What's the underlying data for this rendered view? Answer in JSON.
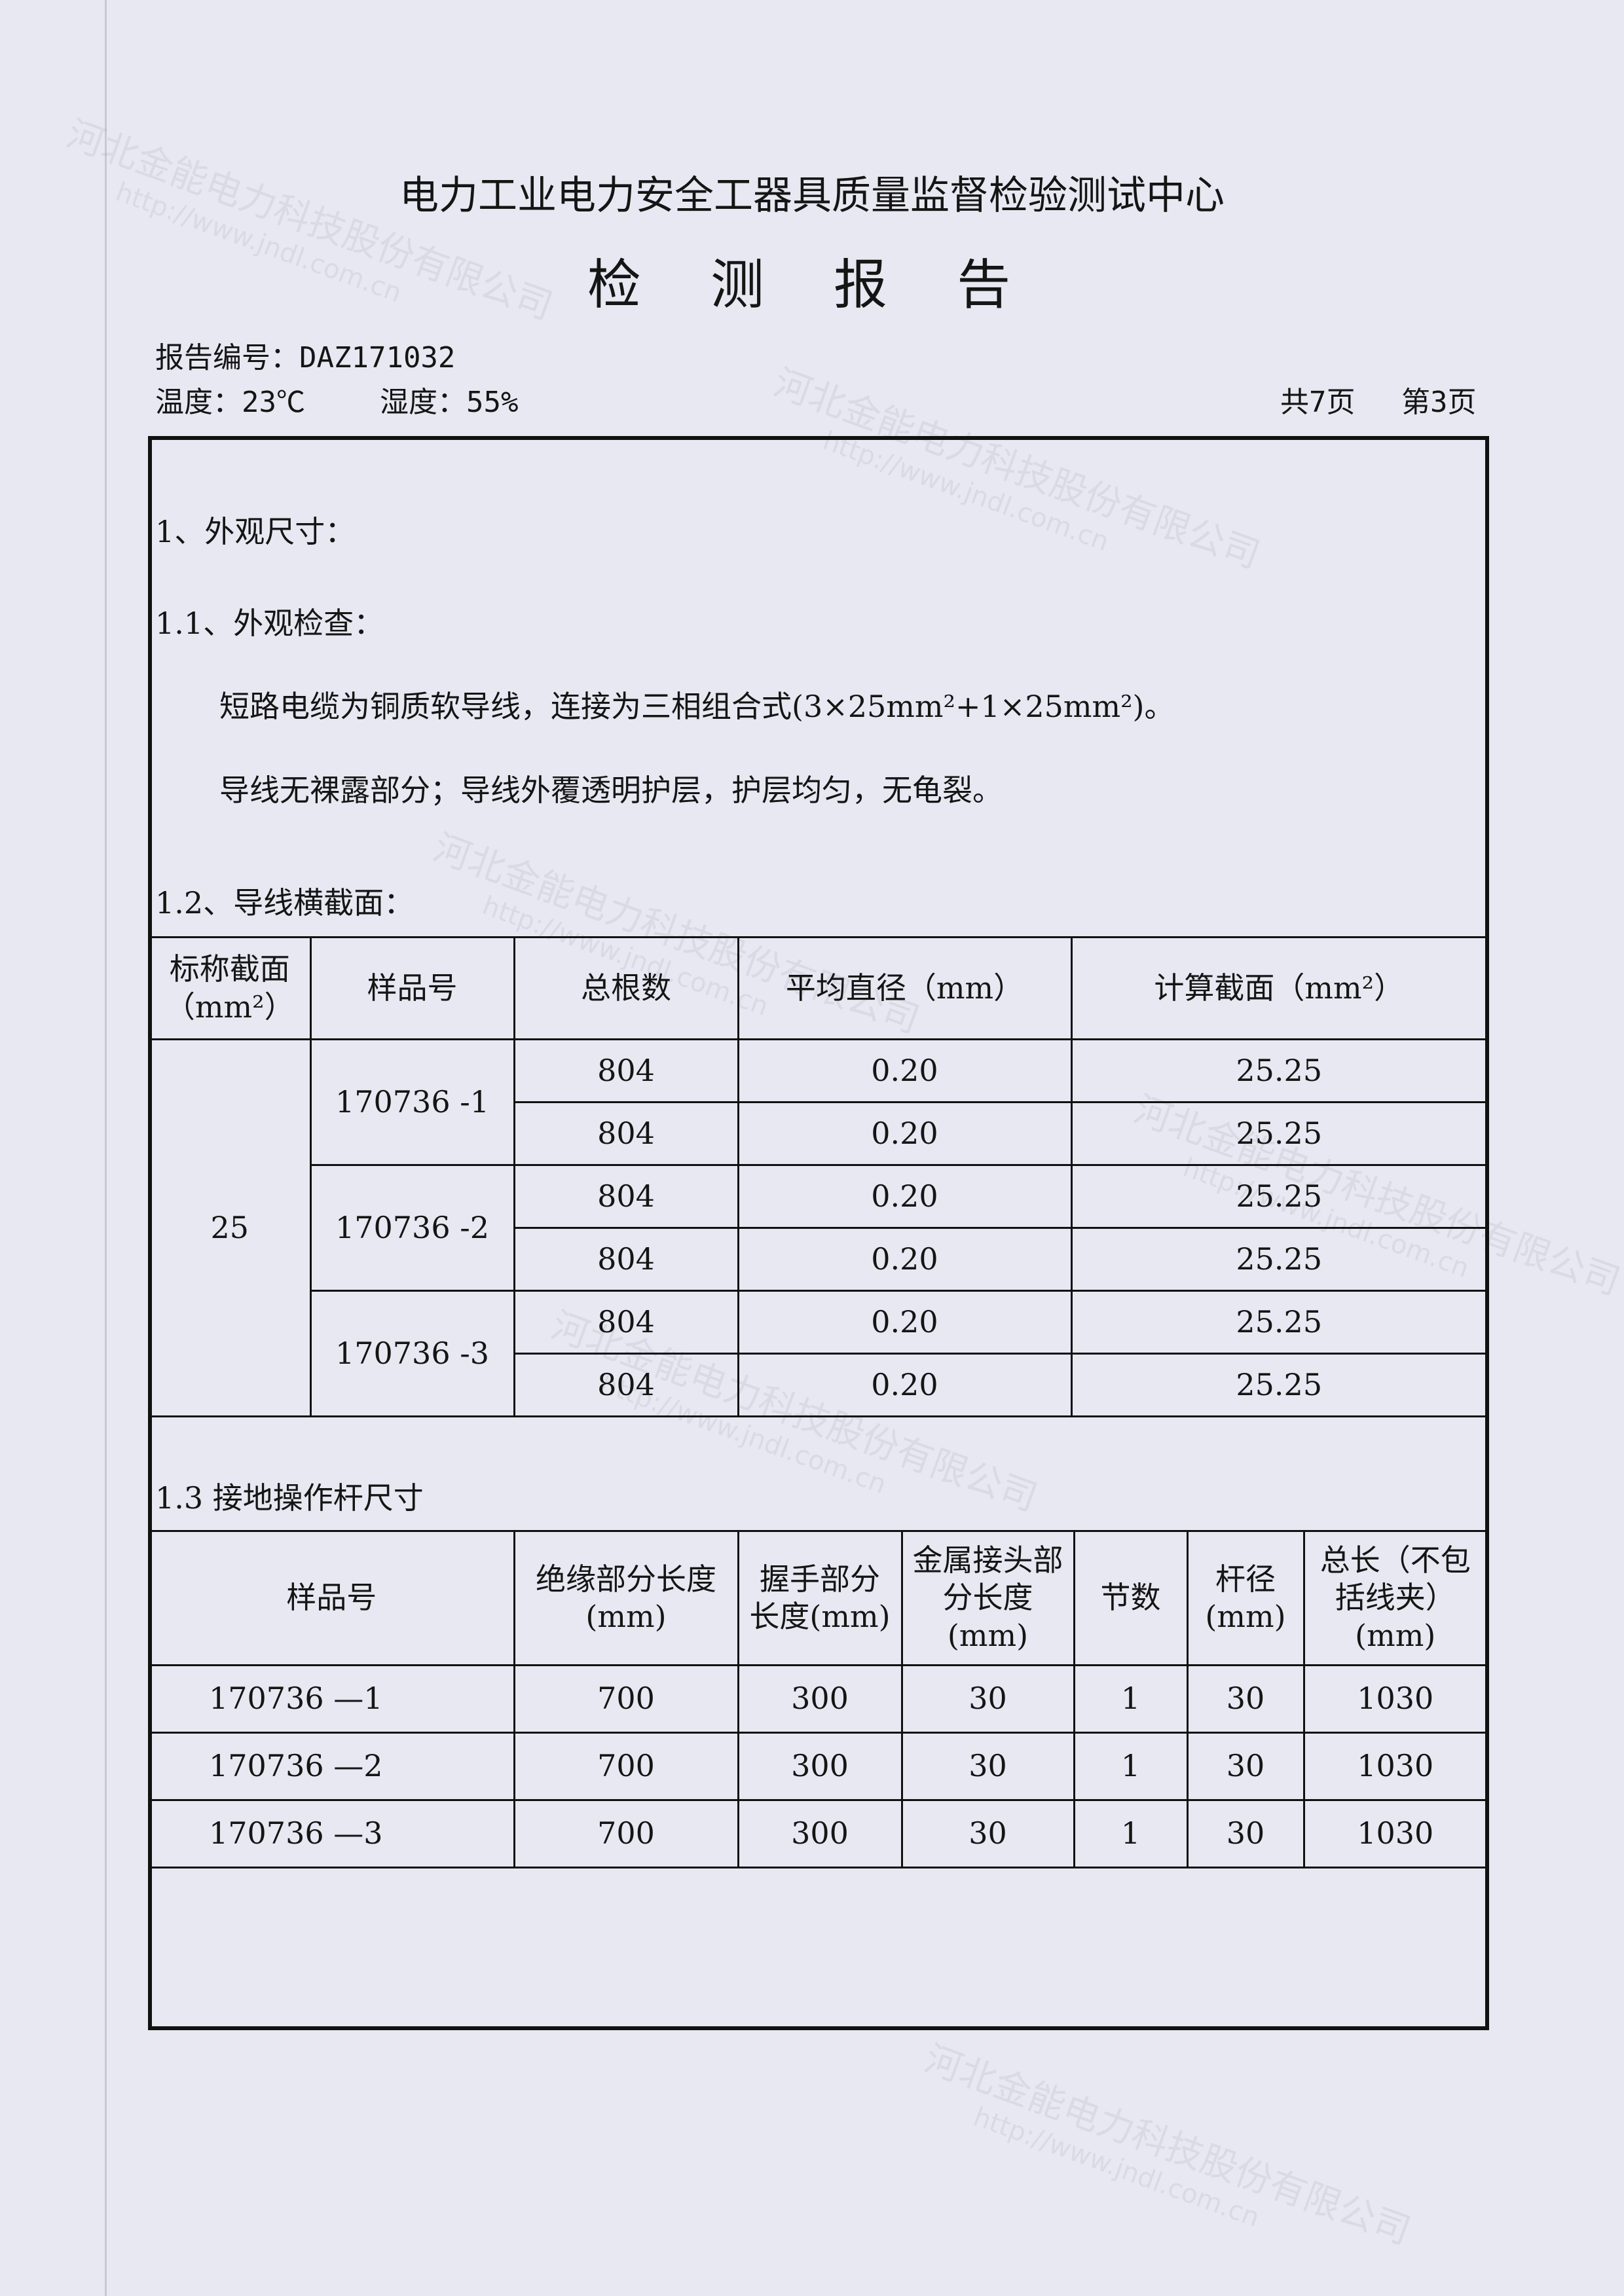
{
  "header": {
    "org_title": "电力工业电力安全工器具质量监督检验测试中心",
    "doc_title": "检 测 报 告",
    "report_no": "报告编号：DAZ171032",
    "temperature": "温度：23℃",
    "humidity": "湿度：55%",
    "total_pages": "共7页",
    "current_page": "第3页"
  },
  "watermark": {
    "company": "河北金能电力科技股份有限公司",
    "url": "http://www.jndl.com.cn"
  },
  "section1": {
    "title": "1、外观尺寸：",
    "s1_1": {
      "title": "1.1、外观检查：",
      "line1": "短路电缆为铜质软导线，连接为三相组合式(3×25mm²+1×25mm²)。",
      "line2": "导线无裸露部分；导线外覆透明护层，护层均匀，无龟裂。"
    },
    "s1_2": {
      "title": "1.2、导线横截面：",
      "headers": [
        "标称截面（mm²）",
        "样品号",
        "总根数",
        "平均直径（mm）",
        "计算截面（mm²）"
      ],
      "nominal": "25",
      "samples": [
        {
          "id": "170736 -1",
          "rows": [
            [
              "804",
              "0.20",
              "25.25"
            ],
            [
              "804",
              "0.20",
              "25.25"
            ]
          ]
        },
        {
          "id": "170736 -2",
          "rows": [
            [
              "804",
              "0.20",
              "25.25"
            ],
            [
              "804",
              "0.20",
              "25.25"
            ]
          ]
        },
        {
          "id": "170736 -3",
          "rows": [
            [
              "804",
              "0.20",
              "25.25"
            ],
            [
              "804",
              "0.20",
              "25.25"
            ]
          ]
        }
      ]
    },
    "s1_3": {
      "title": "1.3 接地操作杆尺寸",
      "headers": [
        "样品号",
        "绝缘部分长度(mm)",
        "握手部分长度(mm)",
        "金属接头部分长度(mm)",
        "节数",
        "杆径(mm)",
        "总长（不包括线夹）(mm)"
      ],
      "rows": [
        [
          "170736 —1",
          "700",
          "300",
          "30",
          "1",
          "30",
          "1030"
        ],
        [
          "170736 —2",
          "700",
          "300",
          "30",
          "1",
          "30",
          "1030"
        ],
        [
          "170736 —3",
          "700",
          "300",
          "30",
          "1",
          "30",
          "1030"
        ]
      ]
    }
  }
}
